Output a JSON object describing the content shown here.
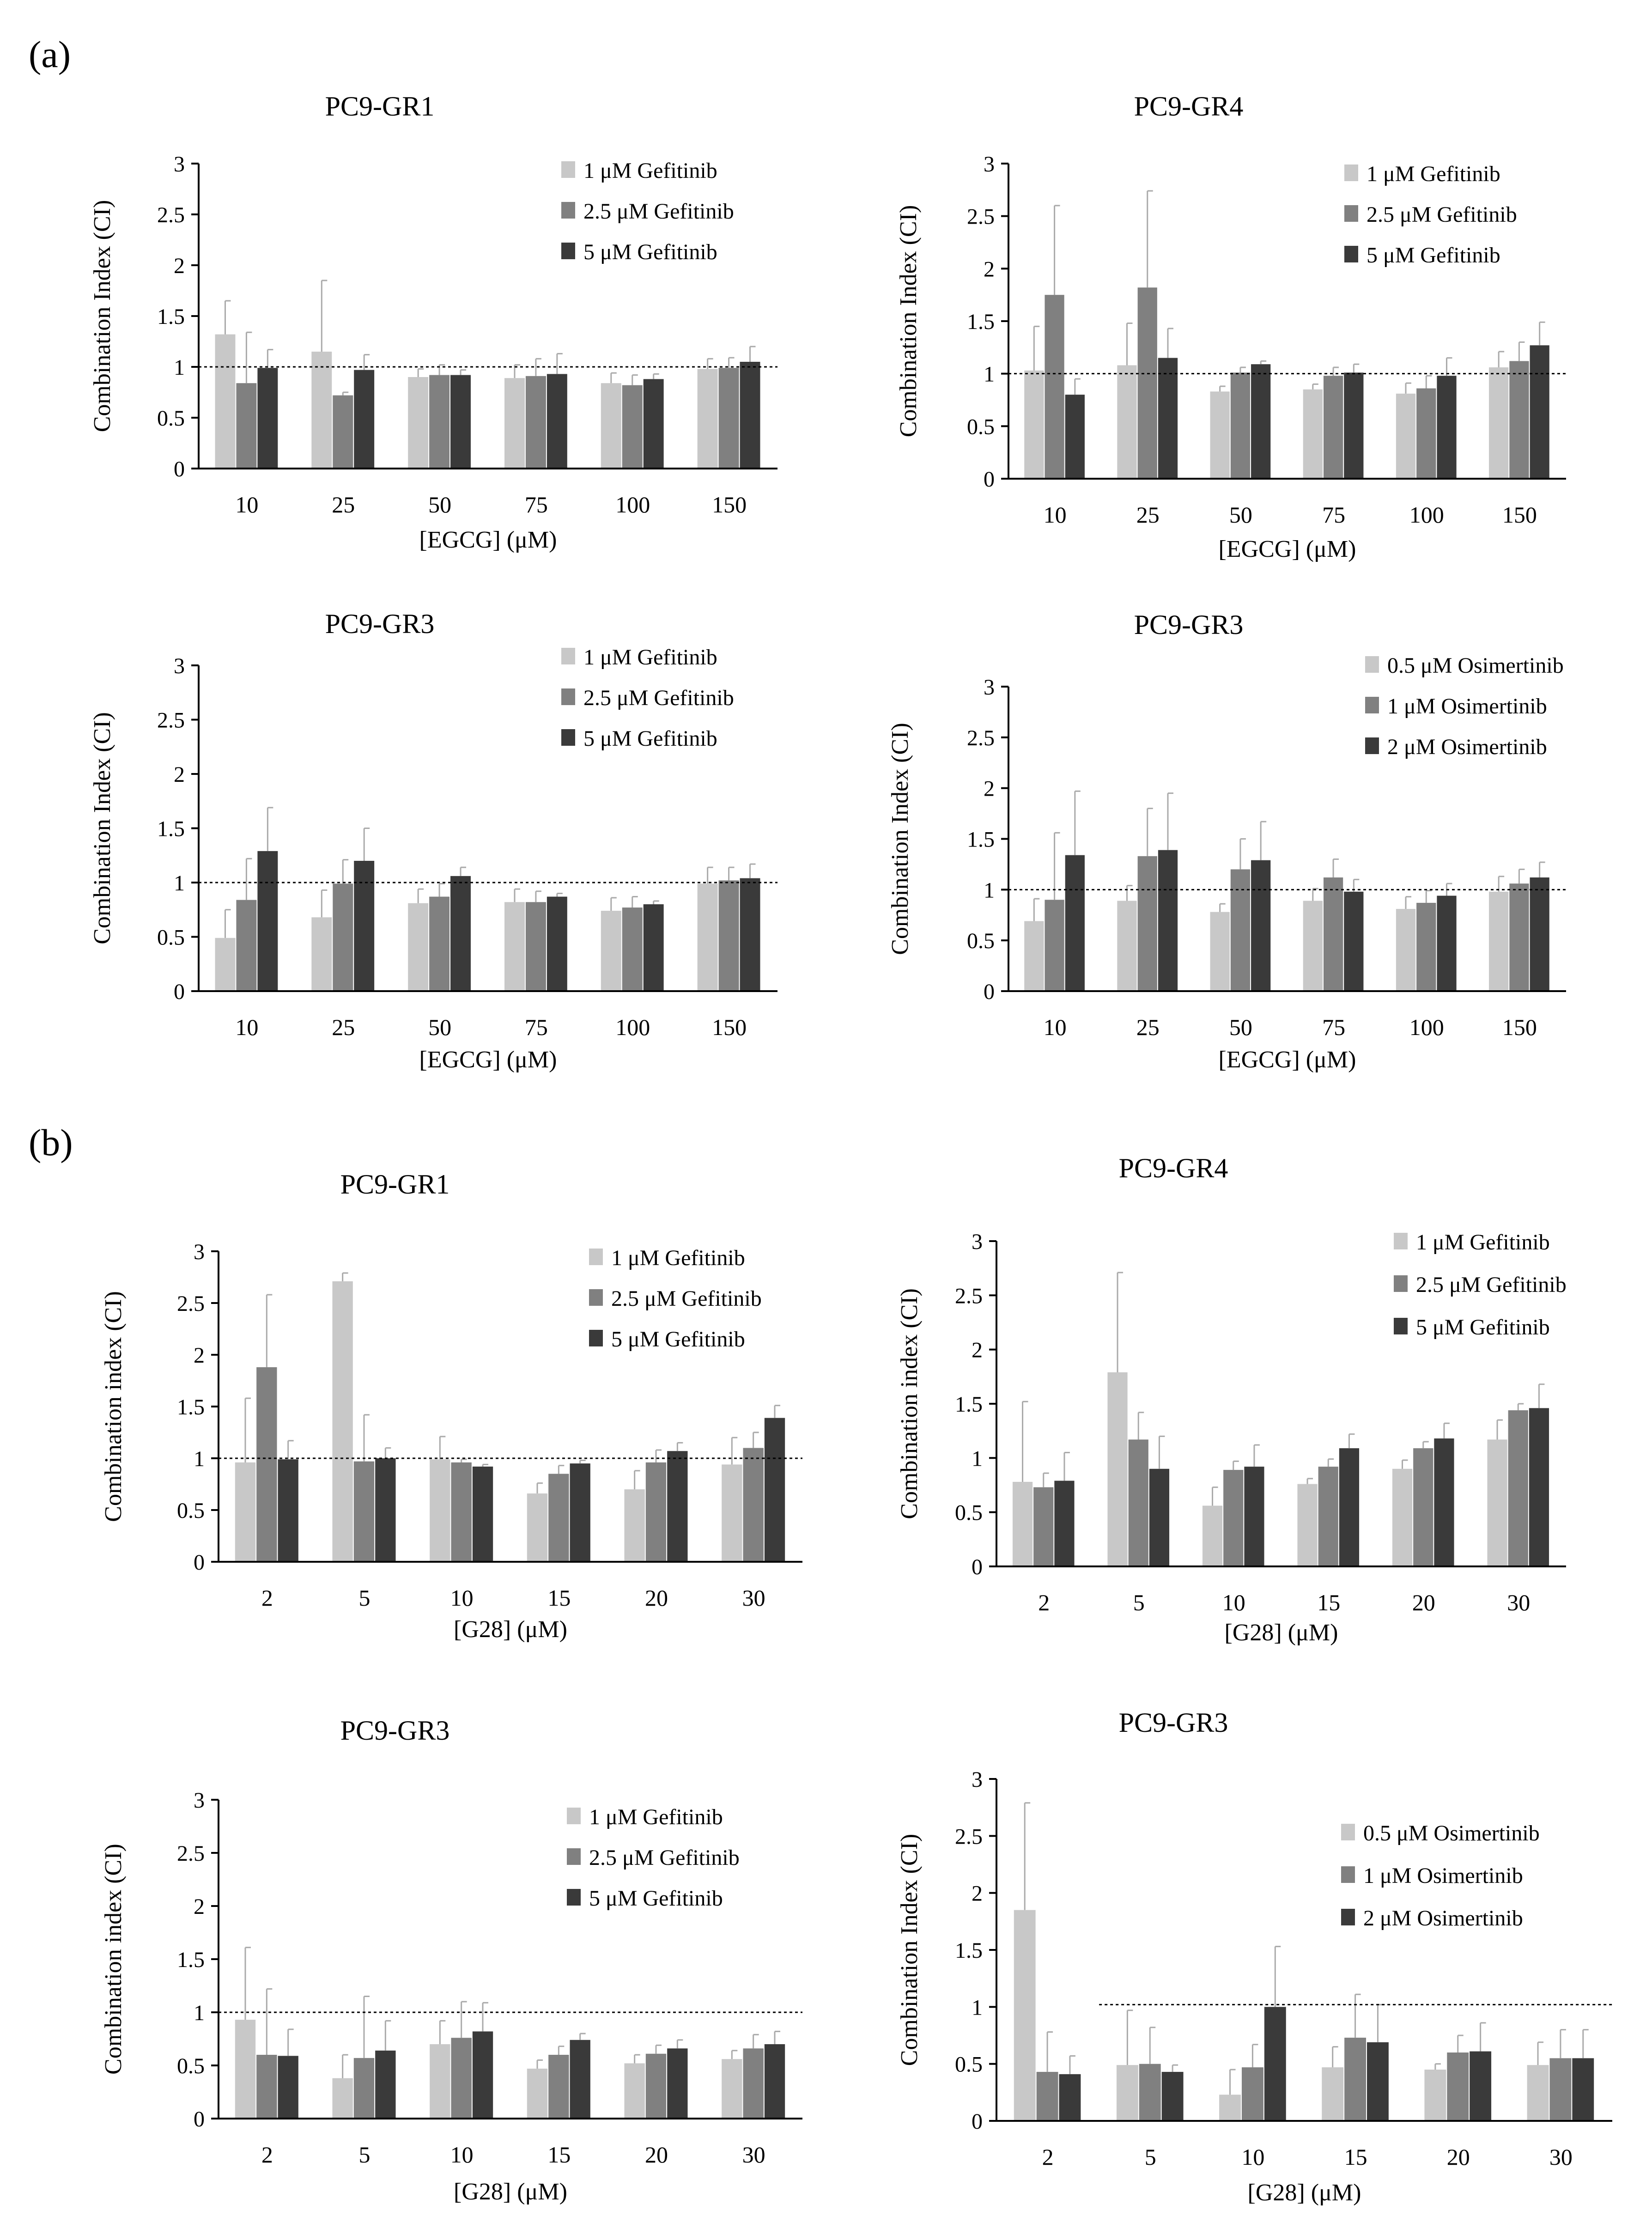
{
  "panel_labels": [
    "(a)",
    "(b)"
  ],
  "colors": {
    "series": [
      "#c8c8c8",
      "#808080",
      "#3a3a3a"
    ],
    "axis": "#000000",
    "error": "#aaaaaa"
  },
  "chart_data": [
    {
      "type": "bar",
      "title": "PC9-GR1",
      "xlabel": "[EGCG] (μM)",
      "ylabel": "Combination Index (CI)",
      "categories": [
        "10",
        "25",
        "50",
        "75",
        "100",
        "150"
      ],
      "ylim": [
        0,
        3
      ],
      "yticks": [
        "0",
        "0.5",
        "1",
        "1.5",
        "2",
        "2.5",
        "3"
      ],
      "reference_line": 1,
      "series": [
        {
          "name": "1 μM Gefitinib",
          "values": [
            1.32,
            1.15,
            0.9,
            0.89,
            0.84,
            0.98
          ],
          "errors": [
            0.33,
            0.7,
            0.08,
            0.13,
            0.1,
            0.1
          ]
        },
        {
          "name": "2.5 μM Gefitinib",
          "values": [
            0.84,
            0.72,
            0.92,
            0.91,
            0.82,
            0.99
          ],
          "errors": [
            0.5,
            0.03,
            0.1,
            0.17,
            0.1,
            0.1
          ]
        },
        {
          "name": "5 μM Gefitinib",
          "values": [
            0.99,
            0.97,
            0.92,
            0.93,
            0.88,
            1.05
          ],
          "errors": [
            0.18,
            0.15,
            0.05,
            0.2,
            0.05,
            0.15
          ]
        }
      ]
    },
    {
      "type": "bar",
      "title": "PC9-GR4",
      "xlabel": "[EGCG] (μM)",
      "ylabel": "Combination Index (CI)",
      "categories": [
        "10",
        "25",
        "50",
        "75",
        "100",
        "150"
      ],
      "ylim": [
        0,
        3
      ],
      "yticks": [
        "0",
        "0.5",
        "1",
        "1.5",
        "2",
        "2.5",
        "3"
      ],
      "reference_line": 1,
      "series": [
        {
          "name": "1 μM Gefitinib",
          "values": [
            1.03,
            1.08,
            0.83,
            0.85,
            0.81,
            1.06
          ],
          "errors": [
            0.42,
            0.4,
            0.05,
            0.05,
            0.1,
            0.15
          ]
        },
        {
          "name": "2.5 μM Gefitinib",
          "values": [
            1.75,
            1.82,
            1.01,
            0.98,
            0.86,
            1.12
          ],
          "errors": [
            0.85,
            0.92,
            0.05,
            0.08,
            0.12,
            0.18
          ]
        },
        {
          "name": "5 μM Gefitinib",
          "values": [
            0.8,
            1.15,
            1.09,
            1.01,
            0.98,
            1.27
          ],
          "errors": [
            0.15,
            0.28,
            0.03,
            0.08,
            0.17,
            0.22
          ]
        }
      ]
    },
    {
      "type": "bar",
      "title": "PC9-GR3",
      "xlabel": "[EGCG] (μM)",
      "ylabel": "Combination Index (CI)",
      "categories": [
        "10",
        "25",
        "50",
        "75",
        "100",
        "150"
      ],
      "ylim": [
        0,
        3
      ],
      "yticks": [
        "0",
        "0.5",
        "1",
        "1.5",
        "2",
        "2.5",
        "3"
      ],
      "reference_line": 1,
      "series": [
        {
          "name": "1 μM Gefitinib",
          "values": [
            0.49,
            0.68,
            0.81,
            0.82,
            0.74,
            0.99
          ],
          "errors": [
            0.26,
            0.25,
            0.13,
            0.12,
            0.12,
            0.15
          ]
        },
        {
          "name": "2.5 μM Gefitinib",
          "values": [
            0.84,
            0.99,
            0.87,
            0.82,
            0.77,
            1.02
          ],
          "errors": [
            0.38,
            0.22,
            0.12,
            0.1,
            0.1,
            0.12
          ]
        },
        {
          "name": "5 μM Gefitinib",
          "values": [
            1.29,
            1.2,
            1.06,
            0.87,
            0.8,
            1.04
          ],
          "errors": [
            0.4,
            0.3,
            0.08,
            0.03,
            0.03,
            0.13
          ]
        }
      ]
    },
    {
      "type": "bar",
      "title": "PC9-GR3",
      "xlabel": "[EGCG] (μM)",
      "ylabel": "Combination Index (CI)",
      "categories": [
        "10",
        "25",
        "50",
        "75",
        "100",
        "150"
      ],
      "ylim": [
        0,
        3
      ],
      "yticks": [
        "0",
        "0.5",
        "1",
        "1.5",
        "2",
        "2.5",
        "3"
      ],
      "reference_line": 1,
      "series": [
        {
          "name": "0.5 μM Osimertinib",
          "values": [
            0.69,
            0.89,
            0.78,
            0.89,
            0.81,
            0.98
          ],
          "errors": [
            0.22,
            0.15,
            0.08,
            0.12,
            0.12,
            0.15
          ]
        },
        {
          "name": "1 μM Osimertinib",
          "values": [
            0.9,
            1.33,
            1.2,
            1.12,
            0.87,
            1.06
          ],
          "errors": [
            0.66,
            0.47,
            0.3,
            0.18,
            0.12,
            0.14
          ]
        },
        {
          "name": "2 μM Osimertinib",
          "values": [
            1.34,
            1.39,
            1.29,
            0.98,
            0.94,
            1.12
          ],
          "errors": [
            0.63,
            0.56,
            0.38,
            0.12,
            0.12,
            0.15
          ]
        }
      ]
    },
    {
      "type": "bar",
      "title": "PC9-GR1",
      "xlabel": "[G28] (μM)",
      "ylabel": "Combination index (CI)",
      "categories": [
        "2",
        "5",
        "10",
        "15",
        "20",
        "30"
      ],
      "ylim": [
        0,
        3
      ],
      "yticks": [
        "0",
        "0.5",
        "1",
        "1.5",
        "2",
        "2.5",
        "3"
      ],
      "reference_line": 1,
      "series": [
        {
          "name": "1 μM Gefitinib",
          "values": [
            0.96,
            2.71,
            0.99,
            0.66,
            0.7,
            0.94
          ],
          "errors": [
            0.62,
            0.08,
            0.22,
            0.1,
            0.18,
            0.26
          ]
        },
        {
          "name": "2.5 μM Gefitinib",
          "values": [
            1.88,
            0.97,
            0.96,
            0.85,
            0.96,
            1.1
          ],
          "errors": [
            0.7,
            0.45,
            0.03,
            0.08,
            0.12,
            0.15
          ]
        },
        {
          "name": "5 μM Gefitinib",
          "values": [
            0.99,
            1.0,
            0.92,
            0.95,
            1.07,
            1.39
          ],
          "errors": [
            0.18,
            0.1,
            0.02,
            0.03,
            0.08,
            0.12
          ]
        }
      ]
    },
    {
      "type": "bar",
      "title": "PC9-GR4",
      "xlabel": "[G28] (μM)",
      "ylabel": "Combination index (CI)",
      "categories": [
        "2",
        "5",
        "10",
        "15",
        "20",
        "30"
      ],
      "ylim": [
        0,
        3
      ],
      "yticks": [
        "0",
        "0.5",
        "1",
        "1.5",
        "2",
        "2.5",
        "3"
      ],
      "reference_line": null,
      "series": [
        {
          "name": "1 μM Gefitinib",
          "values": [
            0.78,
            1.79,
            0.56,
            0.76,
            0.9,
            1.17
          ],
          "errors": [
            0.74,
            0.92,
            0.17,
            0.05,
            0.08,
            0.18
          ]
        },
        {
          "name": "2.5 μM Gefitinib",
          "values": [
            0.73,
            1.17,
            0.89,
            0.92,
            1.09,
            1.44
          ],
          "errors": [
            0.13,
            0.25,
            0.08,
            0.07,
            0.06,
            0.06
          ]
        },
        {
          "name": "5 μM Gefitinib",
          "values": [
            0.79,
            0.9,
            0.92,
            1.09,
            1.18,
            1.46
          ],
          "errors": [
            0.26,
            0.3,
            0.2,
            0.13,
            0.14,
            0.22
          ]
        }
      ]
    },
    {
      "type": "bar",
      "title": "PC9-GR3",
      "xlabel": "[G28] (μM)",
      "ylabel": "Combination index (CI)",
      "categories": [
        "2",
        "5",
        "10",
        "15",
        "20",
        "30"
      ],
      "ylim": [
        0,
        3
      ],
      "yticks": [
        "0",
        "0.5",
        "1",
        "1.5",
        "2",
        "2.5",
        "3"
      ],
      "reference_line": 1,
      "series": [
        {
          "name": "1 μM Gefitinib",
          "values": [
            0.93,
            0.38,
            0.7,
            0.47,
            0.52,
            0.56
          ],
          "errors": [
            0.68,
            0.22,
            0.22,
            0.08,
            0.08,
            0.08
          ]
        },
        {
          "name": "2.5 μM Gefitinib",
          "values": [
            0.6,
            0.57,
            0.76,
            0.6,
            0.61,
            0.66
          ],
          "errors": [
            0.62,
            0.58,
            0.34,
            0.08,
            0.08,
            0.13
          ]
        },
        {
          "name": "5 μM Gefitinib",
          "values": [
            0.59,
            0.64,
            0.82,
            0.74,
            0.66,
            0.7
          ],
          "errors": [
            0.25,
            0.28,
            0.27,
            0.06,
            0.08,
            0.12
          ]
        }
      ]
    },
    {
      "type": "bar",
      "title": "PC9-GR3",
      "xlabel": "[G28] (μM)",
      "ylabel": "Combination Index (CI)",
      "categories": [
        "2",
        "5",
        "10",
        "15",
        "20",
        "30"
      ],
      "ylim": [
        0,
        3
      ],
      "yticks": [
        "0",
        "0.5",
        "1",
        "1.5",
        "2",
        "2.5",
        "3"
      ],
      "reference_line": 1.02,
      "series": [
        {
          "name": "0.5 μM Osimertinib",
          "values": [
            1.85,
            0.49,
            0.23,
            0.47,
            0.45,
            0.49
          ],
          "errors": [
            0.94,
            0.48,
            0.22,
            0.18,
            0.05,
            0.2
          ]
        },
        {
          "name": "1 μM Osimertinib",
          "values": [
            0.43,
            0.5,
            0.47,
            0.73,
            0.6,
            0.55
          ],
          "errors": [
            0.35,
            0.32,
            0.2,
            0.38,
            0.15,
            0.25
          ]
        },
        {
          "name": "2 μM Osimertinib",
          "values": [
            0.41,
            0.43,
            1.0,
            0.69,
            0.61,
            0.55
          ],
          "errors": [
            0.16,
            0.06,
            0.53,
            0.33,
            0.25,
            0.25
          ]
        }
      ]
    }
  ]
}
